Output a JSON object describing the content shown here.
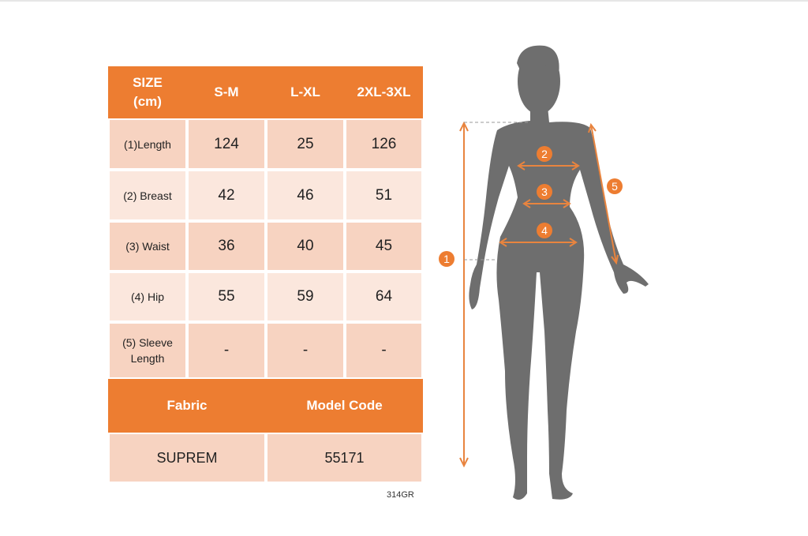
{
  "table": {
    "header": [
      "SIZE\n(cm)",
      "S-M",
      "L-XL",
      "2XL-3XL"
    ],
    "header_size_line1": "SIZE",
    "header_size_line2": "(cm)",
    "rows": [
      {
        "label": "(1)Length",
        "values": [
          "124",
          "25",
          "126"
        ]
      },
      {
        "label": "(2) Breast",
        "values": [
          "42",
          "46",
          "51"
        ]
      },
      {
        "label": "(3) Waist",
        "values": [
          "36",
          "40",
          "45"
        ]
      },
      {
        "label": "(4) Hip",
        "values": [
          "55",
          "59",
          "64"
        ]
      },
      {
        "label_line1": "(5) Sleeve",
        "label_line2": "Length",
        "values": [
          "-",
          "-",
          "-"
        ]
      }
    ],
    "footer_headers": [
      "Fabric",
      "Model Code"
    ],
    "footer_values": [
      "SUPREM",
      "55171"
    ]
  },
  "product_code": "314GR",
  "figure": {
    "markers": [
      "1",
      "2",
      "3",
      "4",
      "5"
    ]
  },
  "colors": {
    "accent": "#ED7D31",
    "row_dark": "#F7D3C1",
    "row_light": "#FBE7DD",
    "silhouette": "#6E6E6E"
  }
}
